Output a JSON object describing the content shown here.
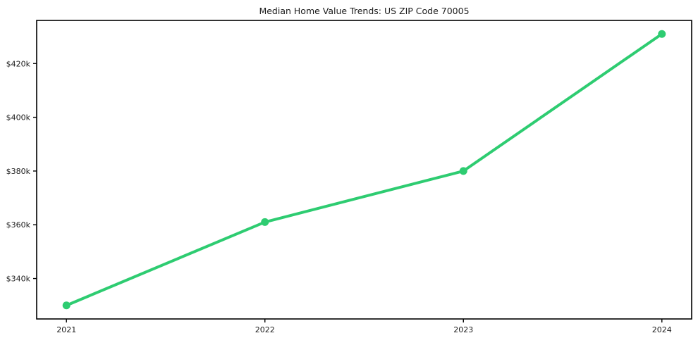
{
  "chart_data": {
    "type": "line",
    "title": "Median Home Value Trends: US ZIP Code 70005",
    "x_categories": [
      "2021",
      "2022",
      "2023",
      "2024"
    ],
    "x_values": [
      2021,
      2022,
      2023,
      2024
    ],
    "series": [
      {
        "name": "Median home value",
        "values_usd": [
          330000,
          361000,
          380000,
          431000
        ],
        "color": "#2ecc71",
        "marker": "circle"
      }
    ],
    "y_ticks": [
      {
        "value_usd": 340000,
        "label": "$340k"
      },
      {
        "value_usd": 360000,
        "label": "$360k"
      },
      {
        "value_usd": 380000,
        "label": "$380k"
      },
      {
        "value_usd": 400000,
        "label": "$400k"
      },
      {
        "value_usd": 420000,
        "label": "$420k"
      }
    ],
    "xlabel": "",
    "ylabel": "",
    "ylim_usd": [
      324950,
      436050
    ],
    "xlim": [
      2020.85,
      2024.15
    ],
    "x_margin_frac": 0.05,
    "y_margin_frac": 0.05,
    "grid": false,
    "legend": "none",
    "background_color": "#ffffff",
    "axis_color": "#000000",
    "text_color": "#1c1c1c",
    "line_width": 4,
    "marker_radius": 5.5,
    "tick_length": 5
  }
}
